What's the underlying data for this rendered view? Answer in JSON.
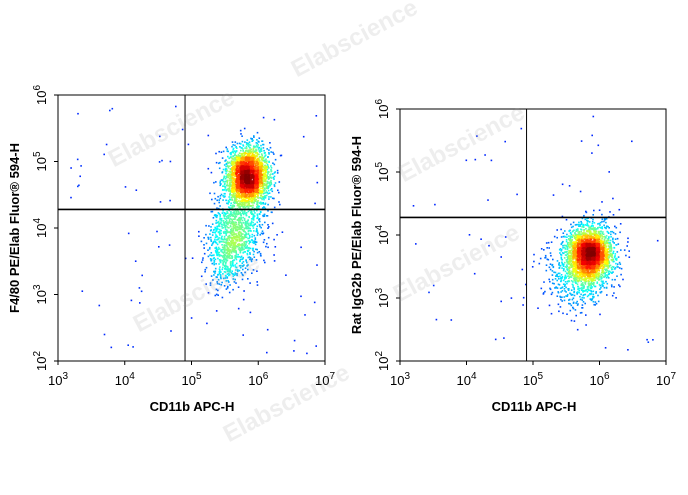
{
  "chart_data": [
    {
      "type": "scatter",
      "style": "density-dot-plot",
      "x_scale": "log",
      "y_scale": "log",
      "xlabel": "CD11b APC-H",
      "ylabel": "F4/80 PE/Elab Fluor® 594-H",
      "xlim": [
        1000,
        10000000
      ],
      "ylim": [
        100,
        1000000
      ],
      "x_ticks": [
        {
          "value": 1000,
          "base": "10",
          "exp": "3"
        },
        {
          "value": 10000,
          "base": "10",
          "exp": "4"
        },
        {
          "value": 100000,
          "base": "10",
          "exp": "5"
        },
        {
          "value": 1000000,
          "base": "10",
          "exp": "6"
        },
        {
          "value": 10000000,
          "base": "10",
          "exp": "7"
        }
      ],
      "y_ticks": [
        {
          "value": 100,
          "base": "10",
          "exp": "2"
        },
        {
          "value": 1000,
          "base": "10",
          "exp": "3"
        },
        {
          "value": 10000,
          "base": "10",
          "exp": "4"
        },
        {
          "value": 100000,
          "base": "10",
          "exp": "5"
        },
        {
          "value": 1000000,
          "base": "10",
          "exp": "6"
        }
      ],
      "gate": {
        "x": 80000,
        "y": 19000
      },
      "populations": [
        {
          "center": [
            700000,
            60000
          ],
          "spread_log": [
            0.16,
            0.22
          ],
          "count": 2600
        },
        {
          "center": [
            500000,
            9000
          ],
          "spread_log": [
            0.2,
            0.3
          ],
          "count": 900
        },
        {
          "center": [
            320000,
            3500
          ],
          "spread_log": [
            0.15,
            0.25
          ],
          "count": 300
        }
      ],
      "peak": [
        750000,
        70000
      ],
      "scatter_points": 80,
      "grid": false,
      "legend": "none"
    },
    {
      "type": "scatter",
      "style": "density-dot-plot",
      "x_scale": "log",
      "y_scale": "log",
      "xlabel": "CD11b APC-H",
      "ylabel": "Rat IgG2b PE/Elab Fluor® 594-H",
      "xlim": [
        1000,
        10000000
      ],
      "ylim": [
        100,
        1000000
      ],
      "x_ticks": [
        {
          "value": 1000,
          "base": "10",
          "exp": "3"
        },
        {
          "value": 10000,
          "base": "10",
          "exp": "4"
        },
        {
          "value": 100000,
          "base": "10",
          "exp": "5"
        },
        {
          "value": 1000000,
          "base": "10",
          "exp": "6"
        },
        {
          "value": 10000000,
          "base": "10",
          "exp": "7"
        }
      ],
      "y_ticks": [
        {
          "value": 100,
          "base": "10",
          "exp": "2"
        },
        {
          "value": 1000,
          "base": "10",
          "exp": "3"
        },
        {
          "value": 10000,
          "base": "10",
          "exp": "4"
        },
        {
          "value": 100000,
          "base": "10",
          "exp": "5"
        },
        {
          "value": 1000000,
          "base": "10",
          "exp": "6"
        }
      ],
      "gate": {
        "x": 80000,
        "y": 19000
      },
      "populations": [
        {
          "center": [
            700000,
            5000
          ],
          "spread_log": [
            0.17,
            0.22
          ],
          "count": 2600
        },
        {
          "center": [
            500000,
            2200
          ],
          "spread_log": [
            0.25,
            0.28
          ],
          "count": 500
        }
      ],
      "peak": [
        780000,
        5500
      ],
      "scatter_points": 60,
      "grid": false,
      "legend": "none"
    }
  ],
  "watermark": "Elabscience"
}
